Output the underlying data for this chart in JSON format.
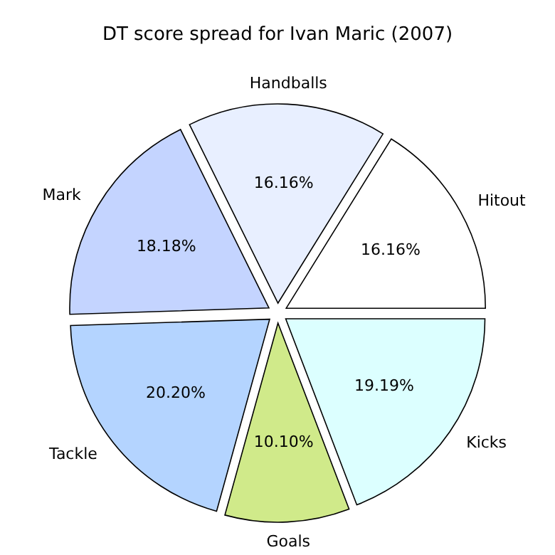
{
  "chart_data": {
    "type": "pie",
    "title": "DT score spread for Ivan Maric (2007)",
    "categories": [
      "Hitout",
      "Handballs",
      "Mark",
      "Tackle",
      "Goals",
      "Kicks"
    ],
    "values": [
      16.16,
      16.16,
      18.18,
      20.2,
      10.1,
      19.19
    ],
    "value_labels": [
      "16.16%",
      "16.16%",
      "18.18%",
      "20.20%",
      "10.10%",
      "19.19%"
    ],
    "colors": [
      "#ffffff",
      "#e8efff",
      "#c4d4ff",
      "#b4d4ff",
      "#d0ea8a",
      "#dcffff"
    ]
  }
}
